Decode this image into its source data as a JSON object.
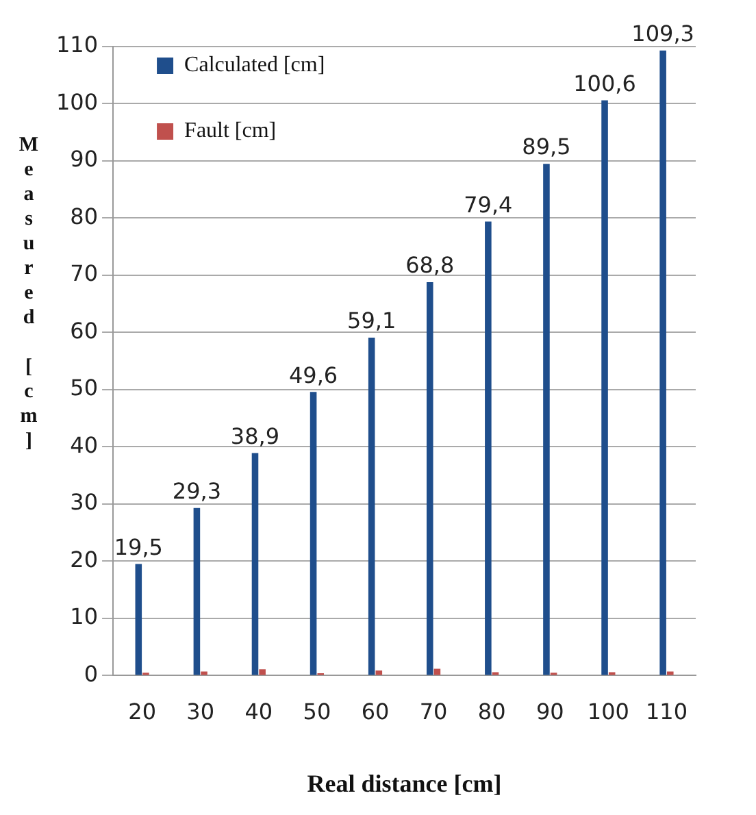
{
  "chart_data": {
    "type": "bar",
    "xlabel": "Real distance [cm]",
    "ylabel": "Measured [cm]",
    "categories": [
      "20",
      "30",
      "40",
      "50",
      "60",
      "70",
      "80",
      "90",
      "100",
      "110"
    ],
    "series": [
      {
        "name": "Calculated [cm]",
        "color": "#1f4e8c",
        "values": [
          19.5,
          29.3,
          38.9,
          49.6,
          59.1,
          68.8,
          79.4,
          89.5,
          100.6,
          109.3
        ],
        "value_labels": [
          "19,5",
          "29,3",
          "38,9",
          "49,6",
          "59,1",
          "68,8",
          "79,4",
          "89,5",
          "100,6",
          "109,3"
        ]
      },
      {
        "name": "Fault [cm]",
        "color": "#c0504d",
        "values": [
          0.5,
          0.7,
          1.1,
          0.4,
          0.9,
          1.2,
          0.6,
          0.5,
          0.6,
          0.7
        ]
      }
    ],
    "ylim": [
      0,
      110
    ],
    "yticks": [
      0,
      10,
      20,
      30,
      40,
      50,
      60,
      70,
      80,
      90,
      100,
      110
    ],
    "grid": "y",
    "legend": "top left"
  }
}
